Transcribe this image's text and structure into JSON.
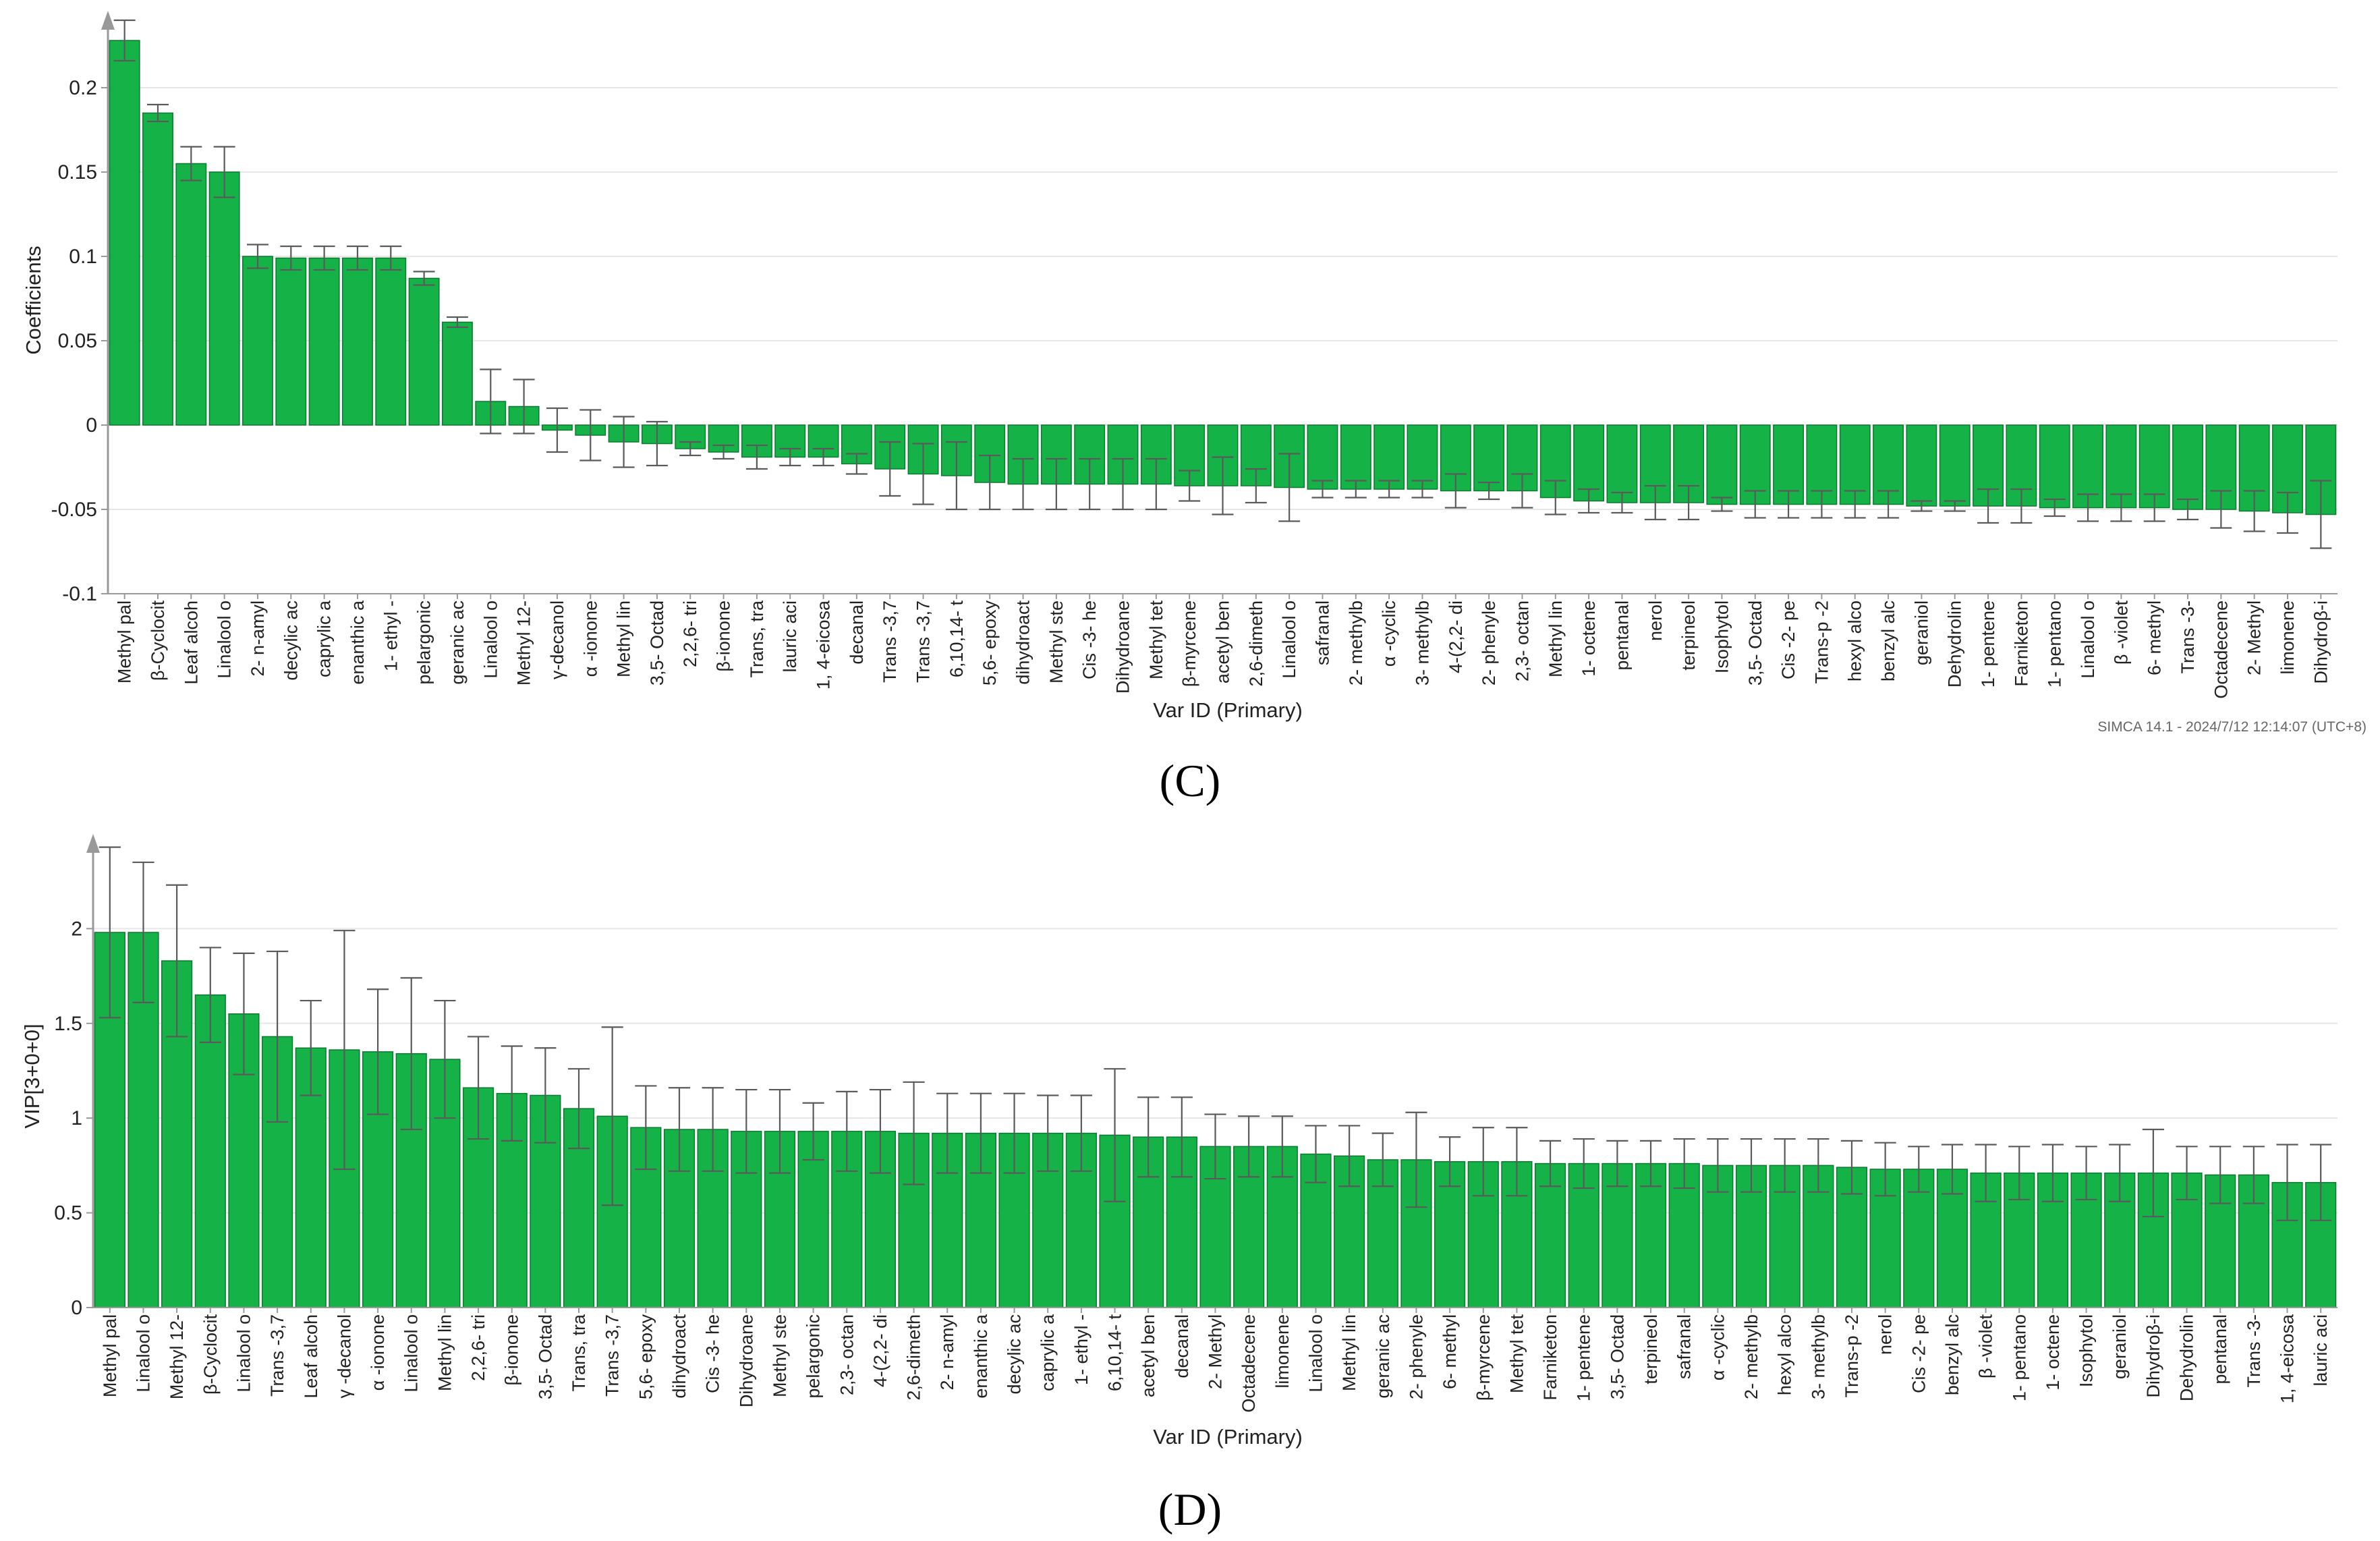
{
  "colors": {
    "bar_fill": "#15b347",
    "bar_edge": "#0b7a2e",
    "error_bar": "#5a5a5a",
    "axis": "#999999",
    "grid": "#e6e6e6",
    "text": "#222222"
  },
  "chart_data": [
    {
      "type": "bar",
      "panel_label": "(C)",
      "ylabel": "Coefficients",
      "xlabel": "Var ID (Primary)",
      "ylim": [
        -0.1,
        0.24
      ],
      "yticks": [
        -0.1,
        -0.05,
        0,
        0.05,
        0.1,
        0.15,
        0.2
      ],
      "ytick_labels": [
        "-0.1",
        "-0.05",
        "0",
        "0.05",
        "0.1",
        "0.15",
        "0.2"
      ],
      "grid": true,
      "footer": "SIMCA 14.1 - 2024/7/12 12:14:07 (UTC+8)",
      "categories": [
        "Methyl pal",
        "β-Cyclocit",
        "Leaf alcoh",
        "Linalool o",
        "2- n-amyl",
        "decylic ac",
        "caprylic a",
        "enanthic a",
        "1- ethyl -",
        "pelargonic",
        "geranic ac",
        "Linalool o",
        "Methyl 12-",
        "γ-decanol",
        "α -ionone",
        "Methyl lin",
        "3,5- Octad",
        "2,2,6- tri",
        "β-ionone",
        "Trans, tra",
        "lauric aci",
        "1,  4-eicosa",
        "decanal",
        "Trans -3,7",
        "Trans -3,7",
        "6,10,14- t",
        "5,6- epoxy",
        "dihydroact",
        "Methyl ste",
        "Cis -3- he",
        "Dihydroane",
        "Methyl tet",
        "β-myrcene",
        "acetyl ben",
        "2,6-dimeth",
        "Linalool o",
        "safranal",
        "2- methylb",
        "α -cyclic",
        "3- methylb",
        "4-(2,2- di",
        "2- phenyle",
        "2,3- octan",
        "Methyl lin",
        "1- octene",
        "pentanal",
        "nerol",
        "terpineol",
        "Isophytol",
        "3,5- Octad",
        "Cis -2- pe",
        "Trans-p -2",
        "hexyl alco",
        "benzyl alc",
        "geraniol",
        "Dehydrolin",
        "1- pentene",
        "Farniketon",
        "1- pentano",
        "Linalool o",
        "β -violet",
        "6- methyl",
        "Trans -3-",
        "Octadecene",
        "2- Methyl",
        "limonene",
        "Dihydroβ-i"
      ],
      "values": [
        0.228,
        0.185,
        0.155,
        0.15,
        0.1,
        0.099,
        0.099,
        0.099,
        0.099,
        0.087,
        0.061,
        0.014,
        0.011,
        -0.003,
        -0.006,
        -0.01,
        -0.011,
        -0.014,
        -0.016,
        -0.019,
        -0.019,
        -0.019,
        -0.023,
        -0.026,
        -0.029,
        -0.03,
        -0.034,
        -0.035,
        -0.035,
        -0.035,
        -0.035,
        -0.035,
        -0.036,
        -0.036,
        -0.036,
        -0.037,
        -0.038,
        -0.038,
        -0.038,
        -0.038,
        -0.039,
        -0.039,
        -0.039,
        -0.043,
        -0.045,
        -0.046,
        -0.046,
        -0.046,
        -0.047,
        -0.047,
        -0.047,
        -0.047,
        -0.047,
        -0.047,
        -0.048,
        -0.048,
        -0.048,
        -0.048,
        -0.049,
        -0.049,
        -0.049,
        -0.049,
        -0.05,
        -0.05,
        -0.051,
        -0.052,
        -0.053
      ],
      "errors": [
        0.012,
        0.005,
        0.01,
        0.015,
        0.007,
        0.007,
        0.007,
        0.007,
        0.007,
        0.004,
        0.003,
        0.019,
        0.016,
        0.013,
        0.015,
        0.015,
        0.013,
        0.004,
        0.004,
        0.007,
        0.005,
        0.005,
        0.006,
        0.016,
        0.018,
        0.02,
        0.016,
        0.015,
        0.015,
        0.015,
        0.015,
        0.015,
        0.009,
        0.017,
        0.01,
        0.02,
        0.005,
        0.005,
        0.005,
        0.005,
        0.01,
        0.005,
        0.01,
        0.01,
        0.007,
        0.006,
        0.01,
        0.01,
        0.004,
        0.008,
        0.008,
        0.008,
        0.008,
        0.008,
        0.003,
        0.003,
        0.01,
        0.01,
        0.005,
        0.008,
        0.008,
        0.008,
        0.006,
        0.011,
        0.012,
        0.012,
        0.02
      ]
    },
    {
      "type": "bar",
      "panel_label": "(D)",
      "ylabel": "VIP[3+0+0]",
      "xlabel": "Var ID (Primary)",
      "ylim": [
        0,
        2.45
      ],
      "yticks": [
        0,
        0.5,
        1,
        1.5,
        2
      ],
      "ytick_labels": [
        "0",
        "0.5",
        "1",
        "1.5",
        "2"
      ],
      "grid": true,
      "categories": [
        "Methyl pal",
        "Linalool o",
        "Methyl 12-",
        "β-Cyclocit",
        "Linalool o",
        "Trans -3,7",
        "Leaf alcoh",
        "γ -decanol",
        "α -ionone",
        "Linalool o",
        "Methyl lin",
        "2,2,6- tri",
        "β-ionone",
        "3,5- Octad",
        "Trans, tra",
        "Trans -3,7",
        "5,6- epoxy",
        "dihydroact",
        "Cis -3- he",
        "Dihydroane",
        "Methyl ste",
        "pelargonic",
        "2,3- octan",
        "4-(2,2- di",
        "2,6-dimeth",
        "2- n-amyl",
        "enanthic a",
        "decylic ac",
        "caprylic a",
        "1- ethyl -",
        "6,10,14- t",
        "acetyl ben",
        "decanal",
        "2- Methyl",
        "Octadecene",
        "limonene",
        "Linalool o",
        "Methyl lin",
        "geranic ac",
        "2- phenyle",
        "6- methyl",
        "β-myrcene",
        "Methyl tet",
        "Farniketon",
        "1- pentene",
        "3,5- Octad",
        "terpineol",
        "safranal",
        "α -cyclic",
        "2- methylb",
        "hexyl alco",
        "3- methylb",
        "Trans-p -2",
        "nerol",
        "Cis -2- pe",
        "benzyl alc",
        "β -violet",
        "1- pentano",
        "1- octene",
        "Isophytol",
        "geraniol",
        "Dihydroβ-i",
        "Dehydrolin",
        "pentanal",
        "Trans -3-",
        "1,  4-eicosa",
        "lauric aci"
      ],
      "values": [
        1.98,
        1.98,
        1.83,
        1.65,
        1.55,
        1.43,
        1.37,
        1.36,
        1.35,
        1.34,
        1.31,
        1.16,
        1.13,
        1.12,
        1.05,
        1.01,
        0.95,
        0.94,
        0.94,
        0.93,
        0.93,
        0.93,
        0.93,
        0.93,
        0.92,
        0.92,
        0.92,
        0.92,
        0.92,
        0.92,
        0.91,
        0.9,
        0.9,
        0.85,
        0.85,
        0.85,
        0.81,
        0.8,
        0.78,
        0.78,
        0.77,
        0.77,
        0.77,
        0.76,
        0.76,
        0.76,
        0.76,
        0.76,
        0.75,
        0.75,
        0.75,
        0.75,
        0.74,
        0.73,
        0.73,
        0.73,
        0.71,
        0.71,
        0.71,
        0.71,
        0.71,
        0.71,
        0.71,
        0.7,
        0.7,
        0.66,
        0.66
      ],
      "errors": [
        0.45,
        0.37,
        0.4,
        0.25,
        0.32,
        0.45,
        0.25,
        0.63,
        0.33,
        0.4,
        0.31,
        0.27,
        0.25,
        0.25,
        0.21,
        0.47,
        0.22,
        0.22,
        0.22,
        0.22,
        0.22,
        0.15,
        0.21,
        0.22,
        0.27,
        0.21,
        0.21,
        0.21,
        0.2,
        0.2,
        0.35,
        0.21,
        0.21,
        0.17,
        0.16,
        0.16,
        0.15,
        0.16,
        0.14,
        0.25,
        0.13,
        0.18,
        0.18,
        0.12,
        0.13,
        0.12,
        0.12,
        0.13,
        0.14,
        0.14,
        0.14,
        0.14,
        0.14,
        0.14,
        0.12,
        0.13,
        0.15,
        0.14,
        0.15,
        0.14,
        0.15,
        0.23,
        0.14,
        0.15,
        0.15,
        0.2,
        0.2
      ]
    }
  ]
}
